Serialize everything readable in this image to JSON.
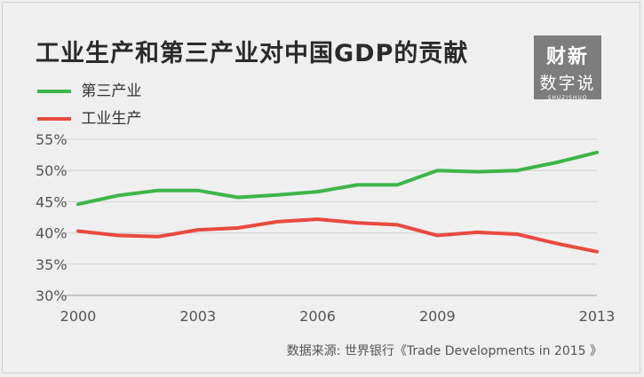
{
  "title": "工业生产和第三产业对中国GDP的贡献",
  "logo": {
    "line1": "财新",
    "line2": "数字说",
    "line3": "SHUZISHUO"
  },
  "source": "数据来源: 世界银行《Trade Developments in 2015 》",
  "colors": {
    "services": "#3db549",
    "industry": "#e84a3f",
    "grid": "#d0d0d0",
    "axis": "#555555"
  },
  "chart_data": {
    "type": "line",
    "title": "工业生产和第三产业对中国GDP的贡献",
    "x": [
      2000,
      2001,
      2002,
      2003,
      2004,
      2005,
      2006,
      2007,
      2008,
      2009,
      2010,
      2011,
      2012,
      2013
    ],
    "x_ticks": [
      "2000",
      "2003",
      "2006",
      "2009",
      "2013"
    ],
    "y_ticks": [
      "55%",
      "50%",
      "45%",
      "40%",
      "35%",
      "30%"
    ],
    "ylim": [
      30,
      55
    ],
    "series": [
      {
        "name": "第三产业",
        "color": "#3db549",
        "values": [
          44.6,
          46.0,
          46.8,
          46.8,
          45.7,
          46.1,
          46.6,
          47.7,
          47.7,
          50.0,
          49.8,
          50.0,
          51.3,
          52.9
        ]
      },
      {
        "name": "工业生产",
        "color": "#e84a3f",
        "values": [
          40.3,
          39.6,
          39.4,
          40.5,
          40.8,
          41.8,
          42.2,
          41.6,
          41.3,
          39.6,
          40.1,
          39.8,
          38.3,
          37.0
        ]
      }
    ],
    "grid": true,
    "legend": "top-left"
  }
}
